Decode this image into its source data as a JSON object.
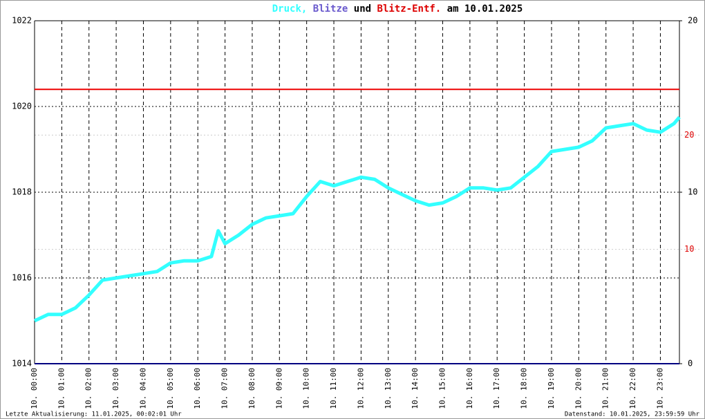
{
  "chart_data": {
    "type": "line",
    "title_parts": [
      {
        "text": "Druck,",
        "color": "#33ffff"
      },
      {
        "text": "Blitze",
        "color": "#6a5acd"
      },
      {
        "text": "und",
        "color": "#000000"
      },
      {
        "text": "Blitz-Entf.",
        "color": "#dd0000"
      },
      {
        "text": "am 10.01.2025",
        "color": "#000000"
      }
    ],
    "footer_left": "Letzte Aktualisierung: 11.01.2025, 00:02:01 Uhr",
    "footer_right": "Datenstand: 10.01.2025, 23:59:59 Uhr",
    "xlim": [
      0,
      23.7
    ],
    "xticks": [
      {
        "value": 0,
        "label": "10. 00:00"
      },
      {
        "value": 1,
        "label": "10. 01:00"
      },
      {
        "value": 2,
        "label": "10. 02:00"
      },
      {
        "value": 3,
        "label": "10. 03:00"
      },
      {
        "value": 4,
        "label": "10. 04:00"
      },
      {
        "value": 5,
        "label": "10. 05:00"
      },
      {
        "value": 6,
        "label": "10. 06:00"
      },
      {
        "value": 7,
        "label": "10. 07:00"
      },
      {
        "value": 8,
        "label": "10. 08:00"
      },
      {
        "value": 9,
        "label": "10. 09:00"
      },
      {
        "value": 10,
        "label": "10. 10:00"
      },
      {
        "value": 11,
        "label": "10. 11:00"
      },
      {
        "value": 12,
        "label": "10. 12:00"
      },
      {
        "value": 13,
        "label": "10. 13:00"
      },
      {
        "value": 14,
        "label": "10. 14:00"
      },
      {
        "value": 15,
        "label": "10. 15:00"
      },
      {
        "value": 16,
        "label": "10. 16:00"
      },
      {
        "value": 17,
        "label": "10. 17:00"
      },
      {
        "value": 18,
        "label": "10. 18:00"
      },
      {
        "value": 19,
        "label": "10. 19:00"
      },
      {
        "value": 20,
        "label": "10. 20:00"
      },
      {
        "value": 21,
        "label": "10. 21:00"
      },
      {
        "value": 22,
        "label": "10. 22:00"
      },
      {
        "value": 23,
        "label": "10. 23:00"
      }
    ],
    "ylim": [
      1014,
      1022
    ],
    "yticks": [
      1014,
      1016,
      1018,
      1020,
      1022
    ],
    "y2lim": [
      0,
      20
    ],
    "y2ticks": [
      0,
      10,
      20
    ],
    "y2color": "#000000",
    "y3lim": [
      0,
      30
    ],
    "y3ticks": [
      10,
      20
    ],
    "y3color": "#dd0000",
    "grid": true,
    "series": [
      {
        "color": "#33ffff",
        "axis": "y",
        "x": [
          0,
          0.5,
          1,
          1.5,
          2,
          2.5,
          3,
          3.5,
          4,
          4.5,
          5,
          5.5,
          6,
          6.5,
          6.75,
          7,
          7.5,
          8,
          8.5,
          9,
          9.5,
          10,
          10.5,
          11,
          11.5,
          12,
          12.5,
          13,
          13.5,
          14,
          14.5,
          15,
          15.5,
          16,
          16.5,
          17,
          17.5,
          18,
          18.5,
          19,
          19.5,
          20,
          20.5,
          21,
          21.5,
          22,
          22.5,
          23,
          23.5,
          23.7
        ],
        "values": [
          1015.0,
          1015.15,
          1015.15,
          1015.3,
          1015.6,
          1015.95,
          1016.0,
          1016.05,
          1016.1,
          1016.15,
          1016.35,
          1016.4,
          1016.4,
          1016.5,
          1017.1,
          1016.8,
          1017.0,
          1017.25,
          1017.4,
          1017.45,
          1017.5,
          1017.9,
          1018.25,
          1018.15,
          1018.25,
          1018.35,
          1018.3,
          1018.1,
          1017.95,
          1017.8,
          1017.7,
          1017.75,
          1017.9,
          1018.1,
          1018.1,
          1018.05,
          1018.1,
          1018.35,
          1018.6,
          1018.95,
          1019.0,
          1019.05,
          1019.2,
          1019.5,
          1019.55,
          1019.6,
          1019.45,
          1019.4,
          1019.6,
          1019.75
        ]
      },
      {
        "color": "#000080",
        "axis": "y2",
        "x": [
          0,
          23.7
        ],
        "values": [
          0,
          0
        ]
      },
      {
        "color": "#ee0000",
        "axis": "y3",
        "x": [
          0,
          23.7
        ],
        "values": [
          24,
          24
        ]
      }
    ]
  }
}
